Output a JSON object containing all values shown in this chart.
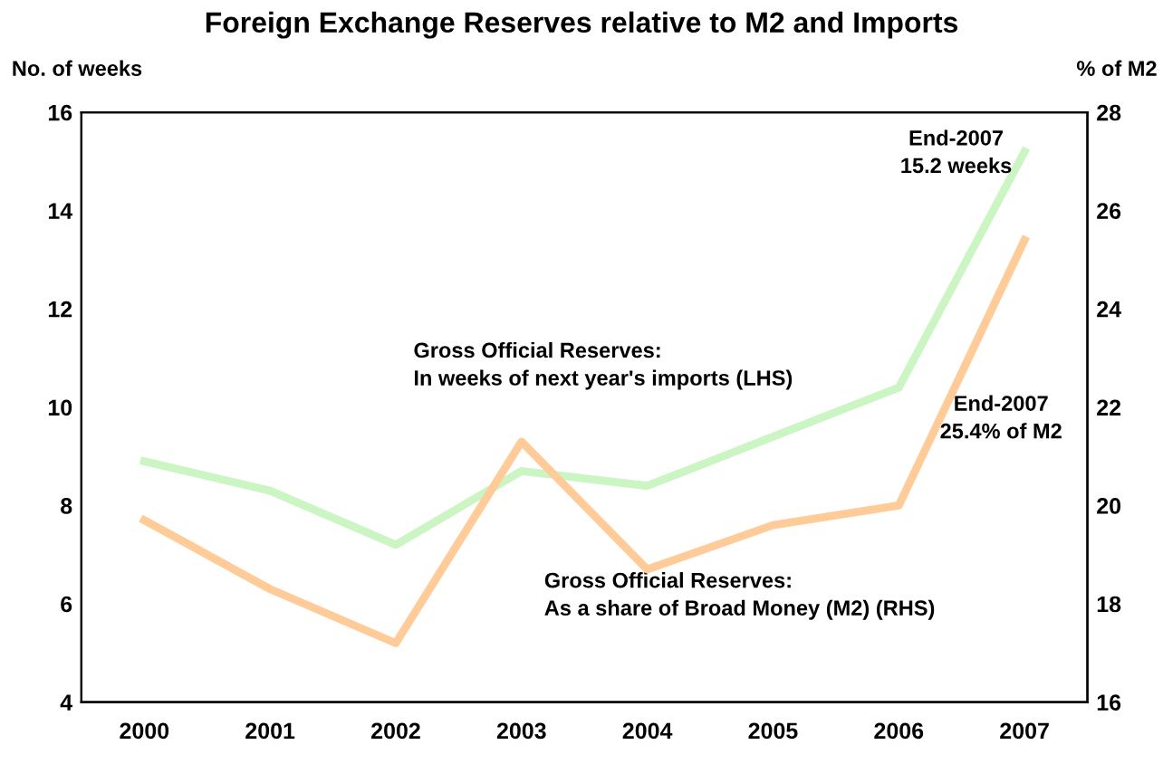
{
  "chart_data": {
    "type": "line",
    "title": "Foreign Exchange Reserves relative to M2 and Imports",
    "ylabel": "No. of weeks",
    "y2label": "% of M2",
    "categories": [
      "2000",
      "2001",
      "2002",
      "2003",
      "2004",
      "2005",
      "2006",
      "2007"
    ],
    "series": [
      {
        "color": "#ccf5c4",
        "values": [
          8.9,
          8.3,
          7.2,
          8.7,
          8.4,
          9.4,
          10.4,
          15.2
        ]
      },
      {
        "color": "#ffcc99",
        "axis": "y2",
        "values": [
          19.7,
          18.3,
          17.2,
          21.3,
          18.7,
          19.6,
          20.0,
          25.4
        ]
      }
    ],
    "ylim": [
      4,
      16
    ],
    "yticks": [
      4,
      6,
      8,
      10,
      12,
      14,
      16
    ],
    "y2lim": [
      16,
      28
    ],
    "y2ticks": [
      16,
      18,
      20,
      22,
      24,
      26,
      28
    ],
    "annotations": [
      "End-2007\n15.2 weeks",
      "Gross Official Reserves:\nIn weeks of next year's imports (LHS)",
      "End-2007\n25.4% of M2",
      "Gross Official Reserves:\nAs a share of Broad Money (M2) (RHS)"
    ],
    "grid": false,
    "marker": "none",
    "line_style": "solid"
  }
}
